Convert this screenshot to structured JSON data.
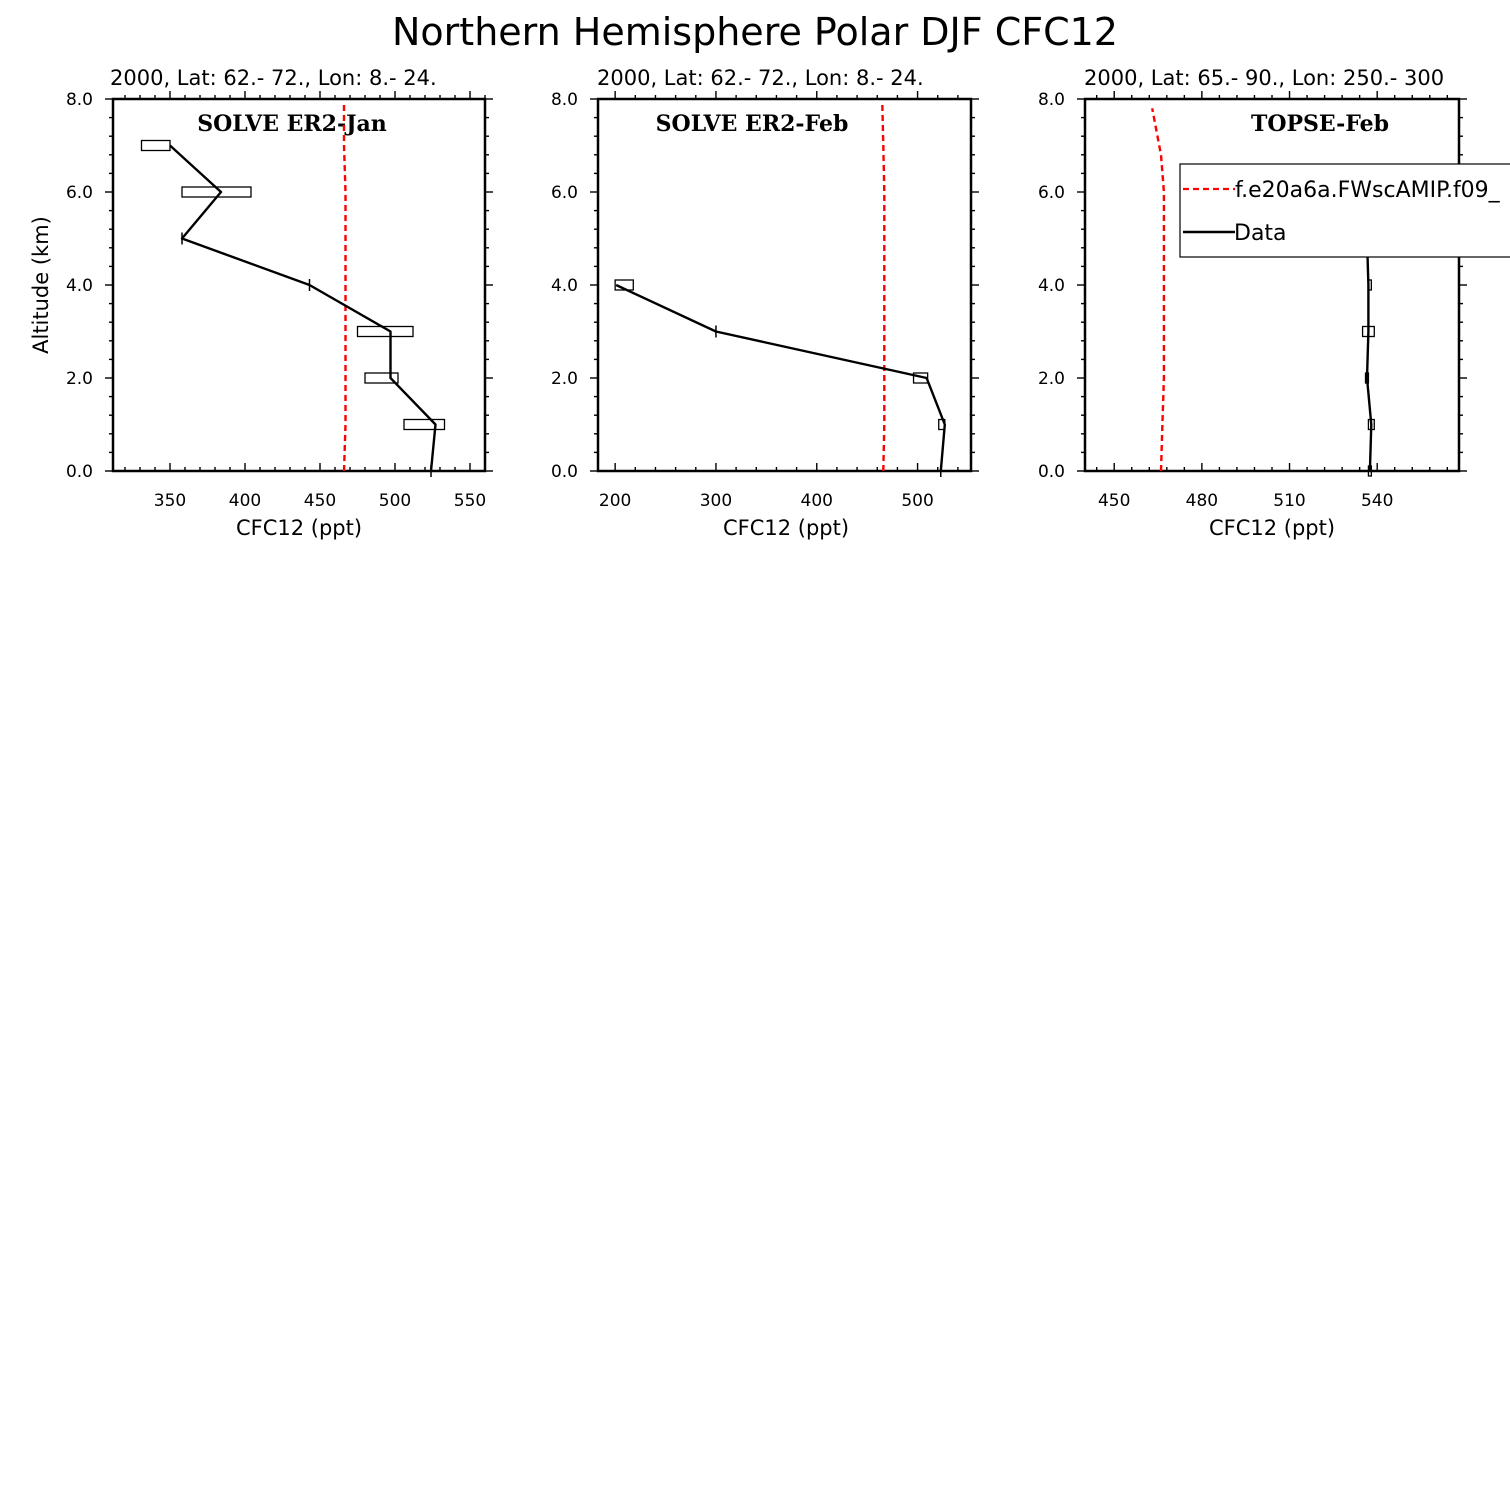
{
  "figure": {
    "title": "Northern Hemisphere Polar DJF CFC12"
  },
  "legend": {
    "model_label": "f.e20a6a.FWscAMIP.f09_",
    "data_label": "Data",
    "model_color": "#ff0000",
    "data_color": "#000000"
  },
  "chart_data": [
    {
      "type": "line",
      "panel_label": "SOLVE ER2-Jan",
      "subtitle": "2000, Lat: 62.- 72., Lon: 8.- 24.",
      "xlabel": "CFC12 (ppt)",
      "ylabel": "Altitude (km)",
      "xlim": [
        312,
        560
      ],
      "ylim": [
        0,
        8
      ],
      "xticks": [
        350,
        400,
        450,
        500,
        550
      ],
      "xtick_labels": [
        "350",
        "400",
        "450",
        "500",
        "550"
      ],
      "yticks": [
        0,
        2,
        4,
        6,
        8
      ],
      "ytick_labels": [
        "0.0",
        "2.0",
        "4.0",
        "6.0",
        "8.0"
      ],
      "series": [
        {
          "name": "f.e20a6a.FWscAMIP.f09_",
          "style": "dashed",
          "color": "#ff0000",
          "x": [
            466,
            467,
            467,
            467,
            467,
            466,
            466
          ],
          "y": [
            0.0,
            1.0,
            2.0,
            4.0,
            6.0,
            7.0,
            7.9
          ]
        },
        {
          "name": "Data",
          "style": "solid",
          "color": "#000000",
          "x": [
            524,
            527,
            497,
            497,
            443,
            358,
            384,
            350
          ],
          "y": [
            0,
            1,
            2,
            3,
            4,
            5,
            6,
            7
          ],
          "err_low": [
            524,
            506,
            480,
            475,
            443,
            358,
            358,
            331
          ],
          "err_high": [
            524,
            533,
            502,
            512,
            443,
            358,
            404,
            350
          ]
        }
      ]
    },
    {
      "type": "line",
      "panel_label": "SOLVE ER2-Feb",
      "subtitle": "2000, Lat: 62.- 72., Lon: 8.- 24.",
      "xlabel": "CFC12 (ppt)",
      "ylabel": "",
      "xlim": [
        183,
        553
      ],
      "ylim": [
        0,
        8
      ],
      "xticks": [
        200,
        300,
        400,
        500
      ],
      "xtick_labels": [
        "200",
        "300",
        "400",
        "500"
      ],
      "yticks": [
        0,
        2,
        4,
        6,
        8
      ],
      "ytick_labels": [
        "0.0",
        "2.0",
        "4.0",
        "6.0",
        "8.0"
      ],
      "series": [
        {
          "name": "f.e20a6a.FWscAMIP.f09_",
          "style": "dashed",
          "color": "#ff0000",
          "x": [
            466,
            467,
            467,
            467,
            467,
            466,
            465
          ],
          "y": [
            0.0,
            1.0,
            2.0,
            4.0,
            6.0,
            7.0,
            7.9
          ]
        },
        {
          "name": "Data",
          "style": "solid",
          "color": "#000000",
          "x": [
            523,
            527,
            509,
            300,
            201
          ],
          "y": [
            0,
            1,
            2,
            3,
            4
          ],
          "err_low": [
            523,
            521,
            496,
            300,
            200
          ],
          "err_high": [
            523,
            527,
            510,
            300,
            218
          ]
        }
      ]
    },
    {
      "type": "line",
      "panel_label": "TOPSE-Feb",
      "subtitle": "2000, Lat: 65.- 90., Lon: 250.- 300",
      "xlabel": "CFC12 (ppt)",
      "ylabel": "",
      "xlim": [
        440,
        568
      ],
      "ylim": [
        0,
        8
      ],
      "xticks": [
        450,
        480,
        510,
        540
      ],
      "xtick_labels": [
        "450",
        "480",
        "510",
        "540"
      ],
      "yticks": [
        0,
        2,
        4,
        6,
        8
      ],
      "ytick_labels": [
        "0.0",
        "2.0",
        "4.0",
        "6.0",
        "8.0"
      ],
      "series": [
        {
          "name": "f.e20a6a.FWscAMIP.f09_",
          "style": "dashed",
          "color": "#ff0000",
          "x": [
            466,
            466.5,
            467,
            467,
            467,
            466,
            463
          ],
          "y": [
            0.0,
            1.0,
            2.0,
            4.0,
            6.0,
            6.8,
            7.8
          ]
        },
        {
          "name": "Data",
          "style": "solid",
          "color": "#000000",
          "x": [
            537.5,
            538,
            536.5,
            537,
            537,
            536.5,
            536.5
          ],
          "y": [
            0,
            1,
            2,
            3,
            4,
            5,
            6
          ],
          "err_low": [
            537,
            537,
            536,
            535,
            537,
            535,
            536
          ],
          "err_high": [
            538,
            539,
            537,
            539,
            538,
            538,
            539
          ]
        }
      ]
    }
  ]
}
